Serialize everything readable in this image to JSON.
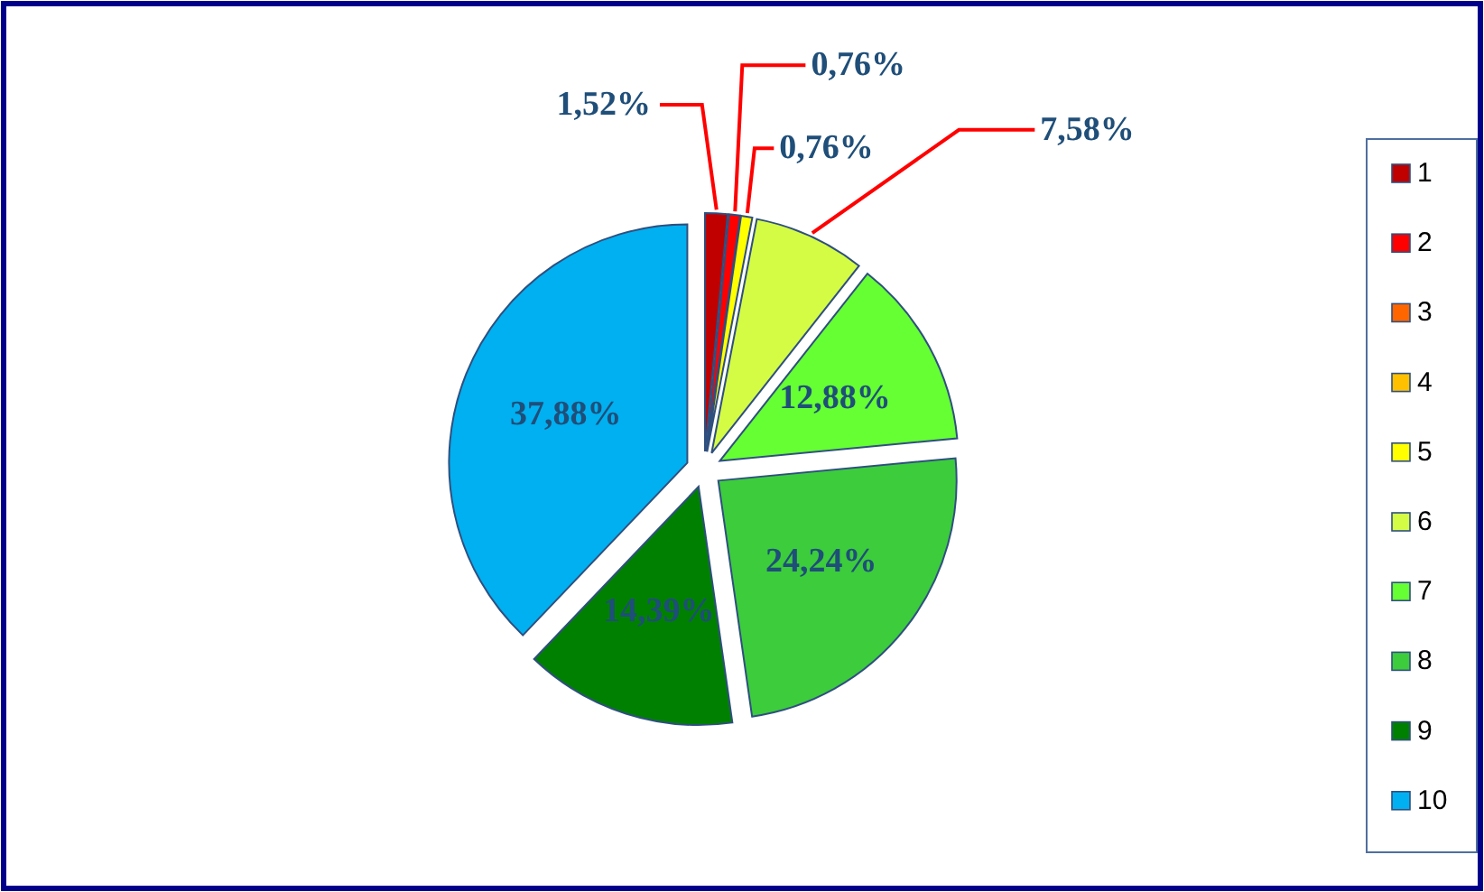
{
  "chart_data": {
    "type": "pie",
    "categories": [
      "1",
      "2",
      "3",
      "4",
      "5",
      "6",
      "7",
      "8",
      "9",
      "10"
    ],
    "values": [
      1.52,
      0.76,
      0,
      0,
      0.76,
      7.58,
      12.88,
      24.24,
      14.39,
      37.88
    ],
    "colors": [
      "#c00000",
      "#ff0000",
      "#ff6600",
      "#ffc000",
      "#ffff00",
      "#d4fc44",
      "#66ff33",
      "#3ccc3c",
      "#008000",
      "#00b0f0"
    ],
    "value_labels": [
      "1,52%",
      "0,76%",
      null,
      null,
      "0,76%",
      "7,58%",
      "12,88%",
      "24,24%",
      "14,39%",
      "37,88%"
    ],
    "legend": "right"
  }
}
